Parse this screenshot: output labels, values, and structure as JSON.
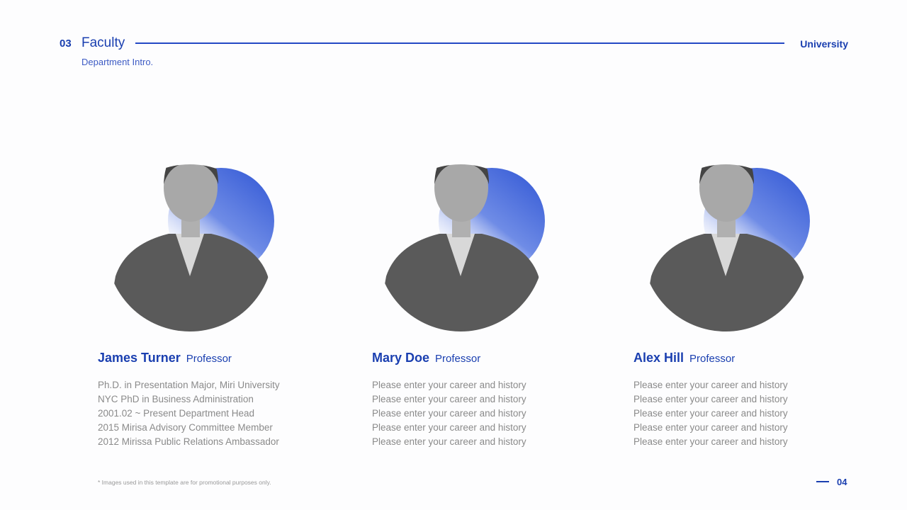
{
  "header": {
    "section_number": "03",
    "title": "Faculty",
    "subtitle": "Department Intro.",
    "brand": "University"
  },
  "faculty": [
    {
      "name": "James Turner",
      "role": "Professor",
      "lines": [
        "Ph.D. in Presentation Major, Miri University",
        "NYC PhD in Business Administration",
        "2001.02 ~ Present Department Head",
        "2015 Mirisa Advisory Committee Member",
        "2012 Mirissa Public Relations Ambassador"
      ]
    },
    {
      "name": "Mary Doe",
      "role": "Professor",
      "lines": [
        "Please enter your career and history",
        "Please enter your career and history",
        "Please enter your career and history",
        "Please enter your career and history",
        "Please enter your career and history"
      ]
    },
    {
      "name": "Alex Hill",
      "role": "Professor",
      "lines": [
        "Please enter your career and history",
        "Please enter your career and history",
        "Please enter your career and history",
        "Please enter your career and history",
        "Please enter your career and history"
      ]
    }
  ],
  "footer": {
    "note": "* Images used in this template are for promotional purposes only.",
    "page": "04"
  },
  "colors": {
    "accent": "#1a3fb0",
    "circle": "#3a5fd8"
  }
}
